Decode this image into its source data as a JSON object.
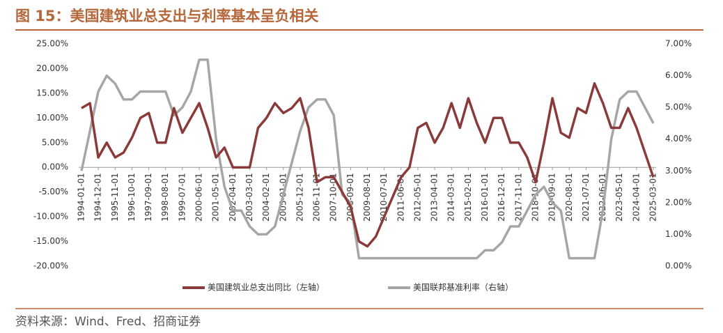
{
  "chart_data": {
    "type": "line",
    "title": "图 15：美国建筑业总支出与利率基本呈负相关",
    "source": "资料来源：Wind、Fred、招商证券",
    "categories": [
      "1994-01-01",
      null,
      "1994-12-01",
      null,
      "1995-11-01",
      null,
      "1996-10-01",
      null,
      "1997-09-01",
      null,
      "1998-08-01",
      null,
      "1999-07-01",
      null,
      "2000-06-01",
      null,
      "2001-05-01",
      null,
      "2002-04-01",
      null,
      "2003-03-01",
      null,
      "2004-02-01",
      null,
      "2005-01-01",
      null,
      "2005-12-01",
      null,
      "2006-11-01",
      null,
      "2007-10-01",
      null,
      "2008-09-01",
      null,
      "2009-08-01",
      null,
      "2010-07-01",
      null,
      "2011-06-01",
      null,
      "2012-05-01",
      null,
      "2013-04-01",
      null,
      "2014-03-01",
      null,
      "2015-02-01",
      null,
      "2016-01-01",
      null,
      "2016-12-01",
      null,
      "2017-11-01",
      null,
      "2018-10-01",
      null,
      "2019-09-01",
      null,
      "2020-08-01",
      null,
      "2021-07-01",
      null,
      "2022-06-01",
      null,
      "2023-05-01",
      null,
      "2024-04-01",
      null,
      "2025-03-01"
    ],
    "series": [
      {
        "name": "美国建筑业总支出同比（左轴）",
        "color": "#8b3a3a",
        "axis": "y",
        "values": [
          12,
          13,
          2,
          5,
          2,
          3,
          6,
          10,
          11,
          5,
          5,
          12,
          7,
          10,
          13,
          8,
          2,
          4,
          0,
          0,
          0,
          8,
          10,
          13,
          11,
          12,
          14,
          8,
          -3,
          -2,
          -2,
          -5,
          -8,
          -15,
          -16,
          -14,
          -10,
          -6,
          -2,
          0,
          8,
          9,
          5,
          8,
          13,
          8,
          14,
          9,
          5,
          10,
          10,
          5,
          5,
          2,
          -3,
          5,
          14,
          7,
          6,
          12,
          11,
          17,
          13,
          8,
          8,
          12,
          8,
          3,
          -2
        ]
      },
      {
        "name": "美国联邦基准利率（右轴）",
        "color": "#a6a6a6",
        "axis": "y2",
        "values": [
          3.0,
          4.25,
          5.5,
          6.0,
          5.75,
          5.25,
          5.25,
          5.5,
          5.5,
          5.5,
          5.5,
          4.75,
          5.0,
          5.5,
          6.5,
          6.5,
          4.0,
          2.5,
          1.75,
          1.75,
          1.25,
          1.0,
          1.0,
          1.25,
          2.25,
          3.25,
          4.25,
          5.0,
          5.25,
          5.25,
          4.75,
          2.25,
          2.0,
          0.25,
          0.25,
          0.25,
          0.25,
          0.25,
          0.25,
          0.25,
          0.25,
          0.25,
          0.25,
          0.25,
          0.25,
          0.25,
          0.25,
          0.25,
          0.5,
          0.5,
          0.75,
          1.25,
          1.25,
          1.75,
          2.25,
          2.5,
          2.0,
          1.75,
          0.25,
          0.25,
          0.25,
          0.25,
          1.75,
          4.0,
          5.25,
          5.5,
          5.5,
          5.0,
          4.5
        ]
      }
    ],
    "ylim": [
      -20,
      25
    ],
    "yticks": [
      {
        "value": -20,
        "label": "-20.00%"
      },
      {
        "value": -15,
        "label": "-15.00%"
      },
      {
        "value": -10,
        "label": "-10.00%"
      },
      {
        "value": -5,
        "label": "-5.00%"
      },
      {
        "value": 0,
        "label": "0.00%"
      },
      {
        "value": 5,
        "label": "5.00%"
      },
      {
        "value": 10,
        "label": "10.00%"
      },
      {
        "value": 15,
        "label": "15.00%"
      },
      {
        "value": 20,
        "label": "20.00%"
      },
      {
        "value": 25,
        "label": "25.00%"
      }
    ],
    "y2lim": [
      0,
      7
    ],
    "y2ticks": [
      {
        "value": 0,
        "label": "0.00%"
      },
      {
        "value": 1,
        "label": "1.00%"
      },
      {
        "value": 2,
        "label": "2.00%"
      },
      {
        "value": 3,
        "label": "3.00%"
      },
      {
        "value": 4,
        "label": "4.00%"
      },
      {
        "value": 5,
        "label": "5.00%"
      },
      {
        "value": 6,
        "label": "6.00%"
      },
      {
        "value": 7,
        "label": "7.00%"
      }
    ]
  }
}
